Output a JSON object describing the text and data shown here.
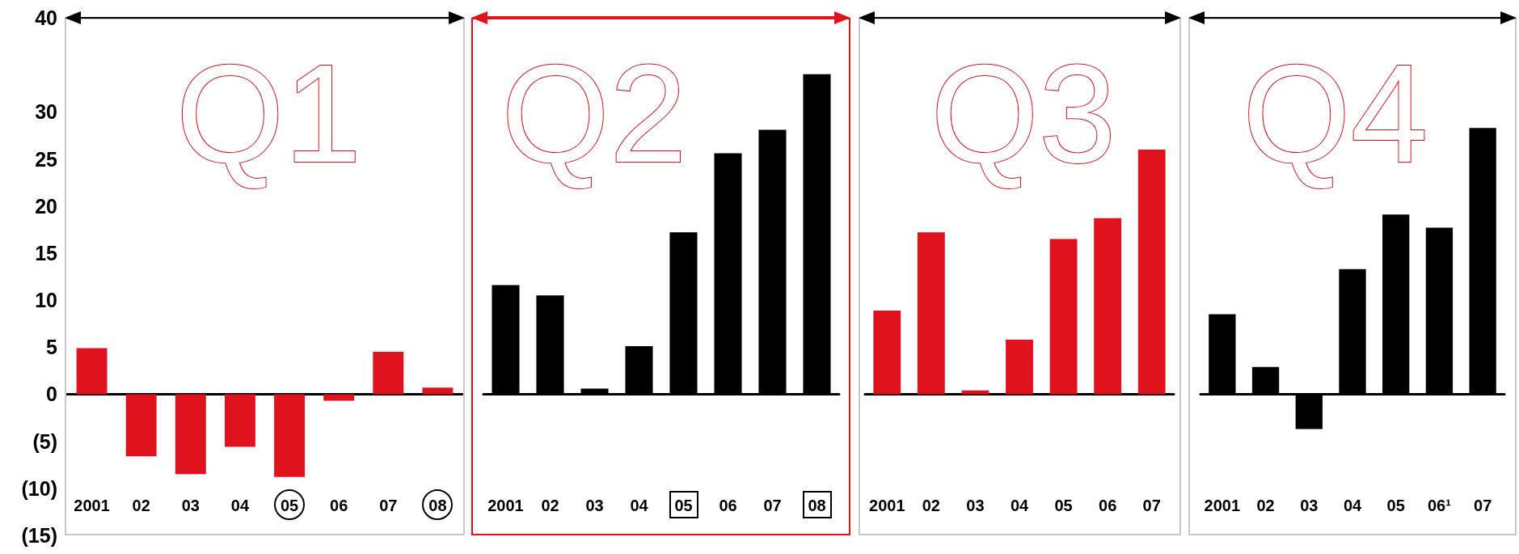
{
  "chart_data": [
    {
      "type": "bar",
      "title": "Q1",
      "categories": [
        "2001",
        "02",
        "03",
        "04",
        "05",
        "06",
        "07",
        "08"
      ],
      "values": [
        4.9,
        -6.6,
        -8.5,
        -5.6,
        -8.8,
        -0.7,
        4.5,
        0.7
      ],
      "color": "#e0121e",
      "ylim": [
        -15,
        40
      ],
      "yticks": [
        {
          "value": -15,
          "label": "(15)"
        },
        {
          "value": -10,
          "label": "(10)"
        },
        {
          "value": -5,
          "label": "(5)"
        },
        0,
        5,
        10,
        15,
        20,
        25,
        30,
        40
      ]
    },
    {
      "type": "bar",
      "title": "Q2",
      "categories": [
        "2001",
        "02",
        "03",
        "04",
        "05",
        "06",
        "07",
        "08"
      ],
      "values": [
        11.6,
        10.5,
        0.6,
        5.1,
        17.2,
        25.6,
        28.1,
        34.0
      ],
      "color": "#000000",
      "ylim": [
        -15,
        40
      ],
      "tick_labels": "x"
    },
    {
      "type": "bar",
      "title": "Q3",
      "categories": [
        "2001",
        "02",
        "03",
        "04",
        "05",
        "06",
        "07"
      ],
      "values": [
        8.9,
        17.2,
        0.4,
        5.8,
        16.5,
        18.7,
        26.0
      ],
      "color": "#e0121e",
      "ylim": [
        -15,
        40
      ],
      "tick_labels": "x"
    },
    {
      "type": "bar",
      "title": "Q4",
      "categories": [
        "2001",
        "02",
        "03",
        "04",
        "05",
        "06¹",
        "07"
      ],
      "values": [
        8.5,
        2.9,
        -3.7,
        13.3,
        19.1,
        17.7,
        28.3
      ],
      "color": "#000000",
      "ylim": [
        -15,
        40
      ],
      "tick_labels": "x"
    }
  ]
}
